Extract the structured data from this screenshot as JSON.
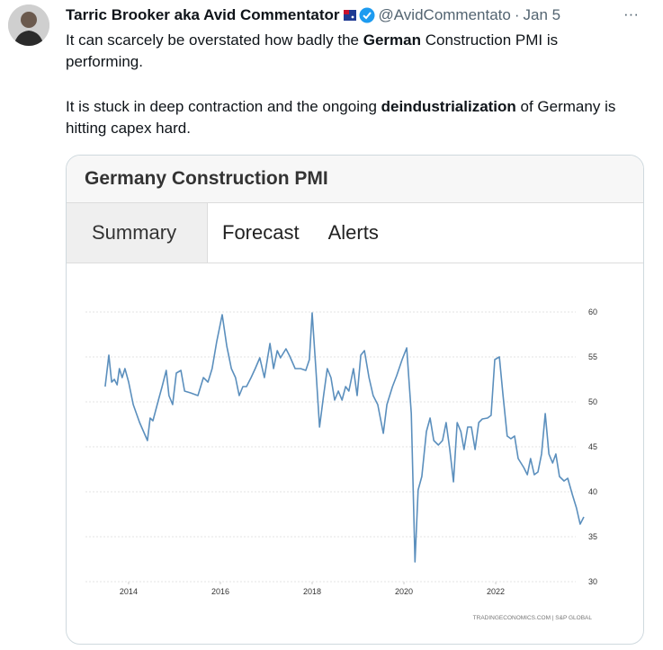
{
  "tweet": {
    "author_name": "Tarric Brooker aka Avid Commentator",
    "handle": "@AvidCommentato",
    "separator": "·",
    "date": "Jan 5",
    "more": "···",
    "paragraphs": [
      [
        {
          "text": "It can scarcely be overstated how badly the "
        },
        {
          "text": "German",
          "bold": true
        },
        {
          "text": " Construction PMI is performing."
        }
      ],
      [
        {
          "text": "It is stuck in deep contraction and the ongoing "
        },
        {
          "text": "deindustrialization",
          "bold": true
        },
        {
          "text": " of Germany is hitting capex hard."
        }
      ]
    ]
  },
  "card": {
    "title": "Germany Construction PMI",
    "tabs": [
      "Summary",
      "Forecast",
      "Alerts"
    ],
    "selected_tab": 0
  },
  "chart_data": {
    "type": "line",
    "color": "#5b8fbd",
    "source": "TRADINGECONOMICS.COM | S&P GLOBAL",
    "xlim": [
      2013.06,
      2023.94
    ],
    "ylim": [
      30,
      60
    ],
    "xticks": [
      2014,
      2016,
      2018,
      2020,
      2022
    ],
    "yticks": [
      30,
      35,
      40,
      45,
      50,
      55,
      60
    ],
    "grid": true,
    "x": [
      2013.49,
      2013.57,
      2013.63,
      2013.69,
      2013.75,
      2013.8,
      2013.86,
      2013.92,
      2014.0,
      2014.1,
      2014.24,
      2014.41,
      2014.47,
      2014.53,
      2014.65,
      2014.73,
      2014.82,
      2014.88,
      2014.96,
      2015.04,
      2015.14,
      2015.22,
      2015.35,
      2015.51,
      2015.63,
      2015.73,
      2015.82,
      2015.92,
      2016.04,
      2016.14,
      2016.24,
      2016.33,
      2016.41,
      2016.49,
      2016.57,
      2016.67,
      2016.76,
      2016.86,
      2016.96,
      2017.08,
      2017.16,
      2017.24,
      2017.31,
      2017.43,
      2017.51,
      2017.63,
      2017.75,
      2017.86,
      2017.94,
      2018.0,
      2018.08,
      2018.16,
      2018.25,
      2018.33,
      2018.41,
      2018.49,
      2018.57,
      2018.65,
      2018.73,
      2018.8,
      2018.9,
      2018.98,
      2019.06,
      2019.14,
      2019.24,
      2019.33,
      2019.43,
      2019.55,
      2019.63,
      2019.75,
      2019.84,
      2019.96,
      2020.06,
      2020.16,
      2020.24,
      2020.31,
      2020.39,
      2020.49,
      2020.57,
      2020.65,
      2020.75,
      2020.84,
      2020.92,
      2021.0,
      2021.08,
      2021.16,
      2021.24,
      2021.31,
      2021.39,
      2021.47,
      2021.55,
      2021.63,
      2021.71,
      2021.82,
      2021.9,
      2021.98,
      2022.08,
      2022.16,
      2022.25,
      2022.33,
      2022.41,
      2022.49,
      2022.61,
      2022.69,
      2022.76,
      2022.84,
      2022.92,
      2023.0,
      2023.08,
      2023.16,
      2023.24,
      2023.31,
      2023.39,
      2023.49,
      2023.57,
      2023.67,
      2023.76,
      2023.84,
      2023.92
    ],
    "values": [
      51.7,
      55.2,
      52.2,
      52.5,
      51.9,
      53.7,
      52.7,
      53.7,
      52.2,
      49.7,
      47.7,
      45.7,
      48.2,
      47.9,
      50.2,
      51.7,
      53.5,
      50.7,
      49.7,
      53.2,
      53.5,
      51.2,
      51.0,
      50.7,
      52.7,
      52.2,
      53.7,
      56.7,
      59.7,
      56.2,
      53.7,
      52.7,
      50.7,
      51.7,
      51.7,
      52.7,
      53.7,
      54.9,
      52.7,
      56.5,
      53.7,
      55.7,
      54.9,
      55.9,
      55.1,
      53.7,
      53.7,
      53.5,
      54.7,
      59.9,
      53.7,
      47.2,
      50.7,
      53.7,
      52.7,
      50.2,
      51.2,
      50.2,
      51.7,
      51.2,
      53.7,
      50.7,
      55.2,
      55.7,
      52.7,
      50.7,
      49.7,
      46.5,
      49.7,
      51.7,
      52.9,
      54.7,
      56.0,
      48.7,
      32.2,
      40.2,
      41.7,
      46.7,
      48.2,
      45.7,
      45.2,
      45.7,
      47.7,
      44.7,
      41.1,
      47.7,
      46.7,
      44.7,
      47.2,
      47.2,
      44.7,
      47.7,
      48.1,
      48.2,
      48.5,
      54.7,
      55.0,
      50.7,
      46.2,
      45.9,
      46.2,
      43.7,
      42.7,
      41.9,
      43.7,
      41.9,
      42.2,
      44.2,
      48.7,
      44.2,
      43.2,
      44.2,
      41.7,
      41.2,
      41.5,
      39.7,
      38.2,
      36.4,
      37.2
    ]
  }
}
